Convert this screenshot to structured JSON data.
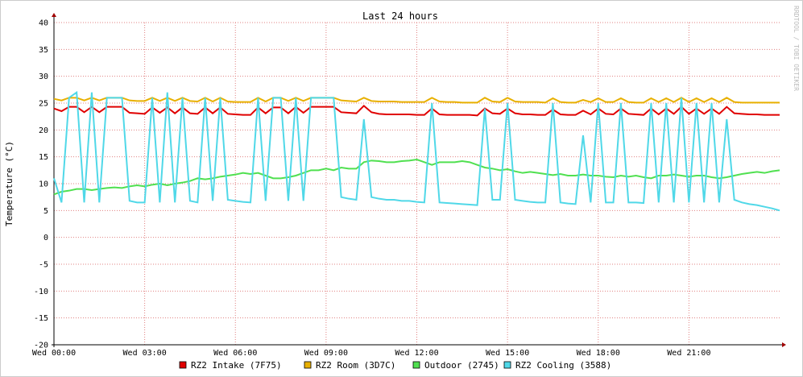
{
  "chart_data": {
    "type": "line",
    "title": "Last 24 hours",
    "y_label": "Temperature (°C)",
    "watermark": "RRDTOOL / TOBI OETIKER",
    "xlim": [
      0,
      24
    ],
    "ylim": [
      -20,
      40
    ],
    "xticks": [
      {
        "value": 0,
        "label": "Wed 00:00"
      },
      {
        "value": 3,
        "label": "Wed 03:00"
      },
      {
        "value": 6,
        "label": "Wed 06:00"
      },
      {
        "value": 9,
        "label": "Wed 09:00"
      },
      {
        "value": 12,
        "label": "Wed 12:00"
      },
      {
        "value": 15,
        "label": "Wed 15:00"
      },
      {
        "value": 18,
        "label": "Wed 18:00"
      },
      {
        "value": 21,
        "label": "Wed 21:00"
      }
    ],
    "yticks": [
      -20,
      -15,
      -10,
      -5,
      0,
      5,
      10,
      15,
      20,
      25,
      30,
      35,
      40
    ],
    "grid": true,
    "legend": "bottom",
    "x": [
      0,
      0.25,
      0.5,
      0.75,
      1,
      1.25,
      1.5,
      1.75,
      2,
      2.25,
      2.5,
      2.75,
      3,
      3.25,
      3.5,
      3.75,
      4,
      4.25,
      4.5,
      4.75,
      5,
      5.25,
      5.5,
      5.75,
      6,
      6.25,
      6.5,
      6.75,
      7,
      7.25,
      7.5,
      7.75,
      8,
      8.25,
      8.5,
      8.75,
      9,
      9.25,
      9.5,
      9.75,
      10,
      10.25,
      10.5,
      10.75,
      11,
      11.25,
      11.5,
      11.75,
      12,
      12.25,
      12.5,
      12.75,
      13,
      13.25,
      13.5,
      13.75,
      14,
      14.25,
      14.5,
      14.75,
      15,
      15.25,
      15.5,
      15.75,
      16,
      16.25,
      16.5,
      16.75,
      17,
      17.25,
      17.5,
      17.75,
      18,
      18.25,
      18.5,
      18.75,
      19,
      19.25,
      19.5,
      19.75,
      20,
      20.25,
      20.5,
      20.75,
      21,
      21.25,
      21.5,
      21.75,
      22,
      22.25,
      22.5,
      22.75,
      23,
      23.25,
      23.5,
      23.75,
      24
    ],
    "series": [
      {
        "name": "RZ2 Intake (7F75)",
        "color": "#e00000",
        "values": [
          24,
          23.5,
          24.3,
          24.3,
          23.3,
          24.3,
          23.3,
          24.3,
          24.3,
          24.3,
          23.2,
          23.1,
          23,
          24.2,
          23.2,
          24.2,
          23.1,
          24.2,
          23.1,
          23,
          24.2,
          23.1,
          24.2,
          23,
          22.9,
          22.8,
          22.8,
          24.2,
          23.1,
          24.2,
          24.2,
          23.1,
          24.3,
          23.2,
          24.3,
          24.3,
          24.3,
          24.3,
          23.3,
          23.2,
          23.1,
          24.5,
          23.3,
          23,
          22.9,
          22.9,
          22.9,
          22.9,
          22.8,
          22.8,
          24,
          22.9,
          22.8,
          22.8,
          22.8,
          22.8,
          22.7,
          24,
          23.1,
          23,
          24,
          23.1,
          22.9,
          22.9,
          22.8,
          22.8,
          23.8,
          22.9,
          22.8,
          22.8,
          23.6,
          22.9,
          24,
          23,
          22.9,
          24,
          23,
          22.9,
          22.8,
          24,
          22.9,
          24,
          23,
          24.3,
          23,
          24,
          23,
          24,
          23,
          24.3,
          23.1,
          23,
          22.9,
          22.9,
          22.8,
          22.8,
          22.8
        ]
      },
      {
        "name": "RZ2 Room (3D7C)",
        "color": "#e8b000",
        "values": [
          25.8,
          25.5,
          26,
          26,
          25.5,
          26,
          25.5,
          26,
          26,
          26,
          25.5,
          25.4,
          25.4,
          26,
          25.4,
          26,
          25.4,
          26,
          25.4,
          25.3,
          26,
          25.3,
          26,
          25.3,
          25.2,
          25.2,
          25.2,
          26,
          25.3,
          26,
          26,
          25.4,
          26,
          25.4,
          26,
          26,
          26,
          26,
          25.5,
          25.4,
          25.3,
          26,
          25.4,
          25.3,
          25.3,
          25.3,
          25.2,
          25.2,
          25.2,
          25.2,
          26,
          25.3,
          25.2,
          25.2,
          25.1,
          25.1,
          25.1,
          26,
          25.3,
          25.2,
          26,
          25.3,
          25.2,
          25.2,
          25.2,
          25.1,
          25.9,
          25.2,
          25.1,
          25.1,
          25.6,
          25.2,
          25.9,
          25.2,
          25.2,
          25.9,
          25.2,
          25.1,
          25.1,
          25.9,
          25.2,
          25.9,
          25.2,
          26,
          25.2,
          25.9,
          25.2,
          25.9,
          25.2,
          26,
          25.2,
          25.1,
          25.1,
          25.1,
          25.1,
          25.1,
          25.1
        ]
      },
      {
        "name": "Outdoor (2745)",
        "color": "#50e050",
        "values": [
          8,
          8.5,
          8.7,
          9,
          9,
          8.8,
          9,
          9.2,
          9.3,
          9.2,
          9.5,
          9.7,
          9.5,
          9.8,
          10,
          9.7,
          10,
          10.2,
          10.5,
          11,
          10.8,
          11,
          11.3,
          11.5,
          11.7,
          12,
          11.8,
          12,
          11.5,
          11,
          11,
          11.2,
          11.5,
          12,
          12.5,
          12.5,
          12.8,
          12.5,
          13,
          12.8,
          12.8,
          14,
          14.3,
          14.2,
          14,
          14,
          14.2,
          14.3,
          14.5,
          14,
          13.5,
          14,
          14,
          14,
          14.2,
          14,
          13.5,
          13,
          12.8,
          12.5,
          12.7,
          12.3,
          12,
          12.2,
          12,
          11.8,
          11.6,
          11.8,
          11.5,
          11.5,
          11.7,
          11.5,
          11.5,
          11.3,
          11.2,
          11.5,
          11.3,
          11.5,
          11.2,
          11,
          11.5,
          11.5,
          11.7,
          11.5,
          11.3,
          11.5,
          11.5,
          11.2,
          11,
          11.2,
          11.5,
          11.8,
          12,
          12.2,
          12,
          12.3,
          12.5
        ]
      },
      {
        "name": "RZ2 Cooling (3588)",
        "color": "#50d8e8",
        "values": [
          11,
          6.5,
          26,
          27,
          6.5,
          27,
          6.5,
          26,
          26,
          26,
          6.8,
          6.5,
          6.5,
          26,
          6.5,
          27,
          6.5,
          26,
          6.8,
          6.5,
          26,
          6.8,
          26,
          7,
          6.8,
          6.6,
          6.5,
          26,
          6.8,
          26,
          26,
          6.8,
          26,
          6.8,
          26,
          26,
          26,
          26,
          7.5,
          7.2,
          7,
          22,
          7.5,
          7.2,
          7,
          7,
          6.8,
          6.8,
          6.6,
          6.5,
          25,
          6.5,
          6.4,
          6.3,
          6.2,
          6.1,
          6,
          24,
          7,
          7,
          25,
          7,
          6.8,
          6.6,
          6.5,
          6.5,
          25,
          6.5,
          6.3,
          6.2,
          19,
          6.5,
          25,
          6.5,
          6.5,
          25,
          6.5,
          6.5,
          6.4,
          25,
          6.5,
          25,
          6.5,
          26,
          6.5,
          25,
          6.5,
          25,
          6.5,
          22,
          7,
          6.5,
          6.2,
          6,
          5.7,
          5.4,
          5
        ]
      }
    ]
  }
}
